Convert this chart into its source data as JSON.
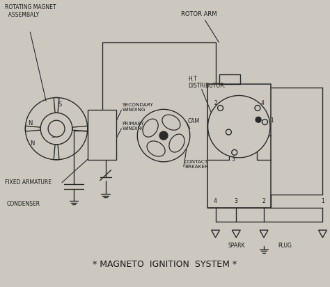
{
  "title": "* MAGNETO  IGNITION  SYSTEM *",
  "bg_color": "#ccc8c0",
  "line_color": "#2a2a2a",
  "text_color": "#1a1a1a",
  "labels": {
    "rotating_magnet": "ROTATING MAGNET\n  ASSEMBALY",
    "fixed_armature": "FIXED ARMATURE",
    "condenser": "CONDENSER",
    "secondary": "SECONDARY\nWINDING",
    "primary": "PRIMARY\nWINDING",
    "cam": "CAM",
    "contact_breaker": "CONTACT\nBREAKER",
    "rotor_arm": "ROTOR ARM",
    "ht_distributor": "H.T\nDISTRIBUTOR.",
    "spark": "SPARK",
    "plug": "PLUG"
  }
}
